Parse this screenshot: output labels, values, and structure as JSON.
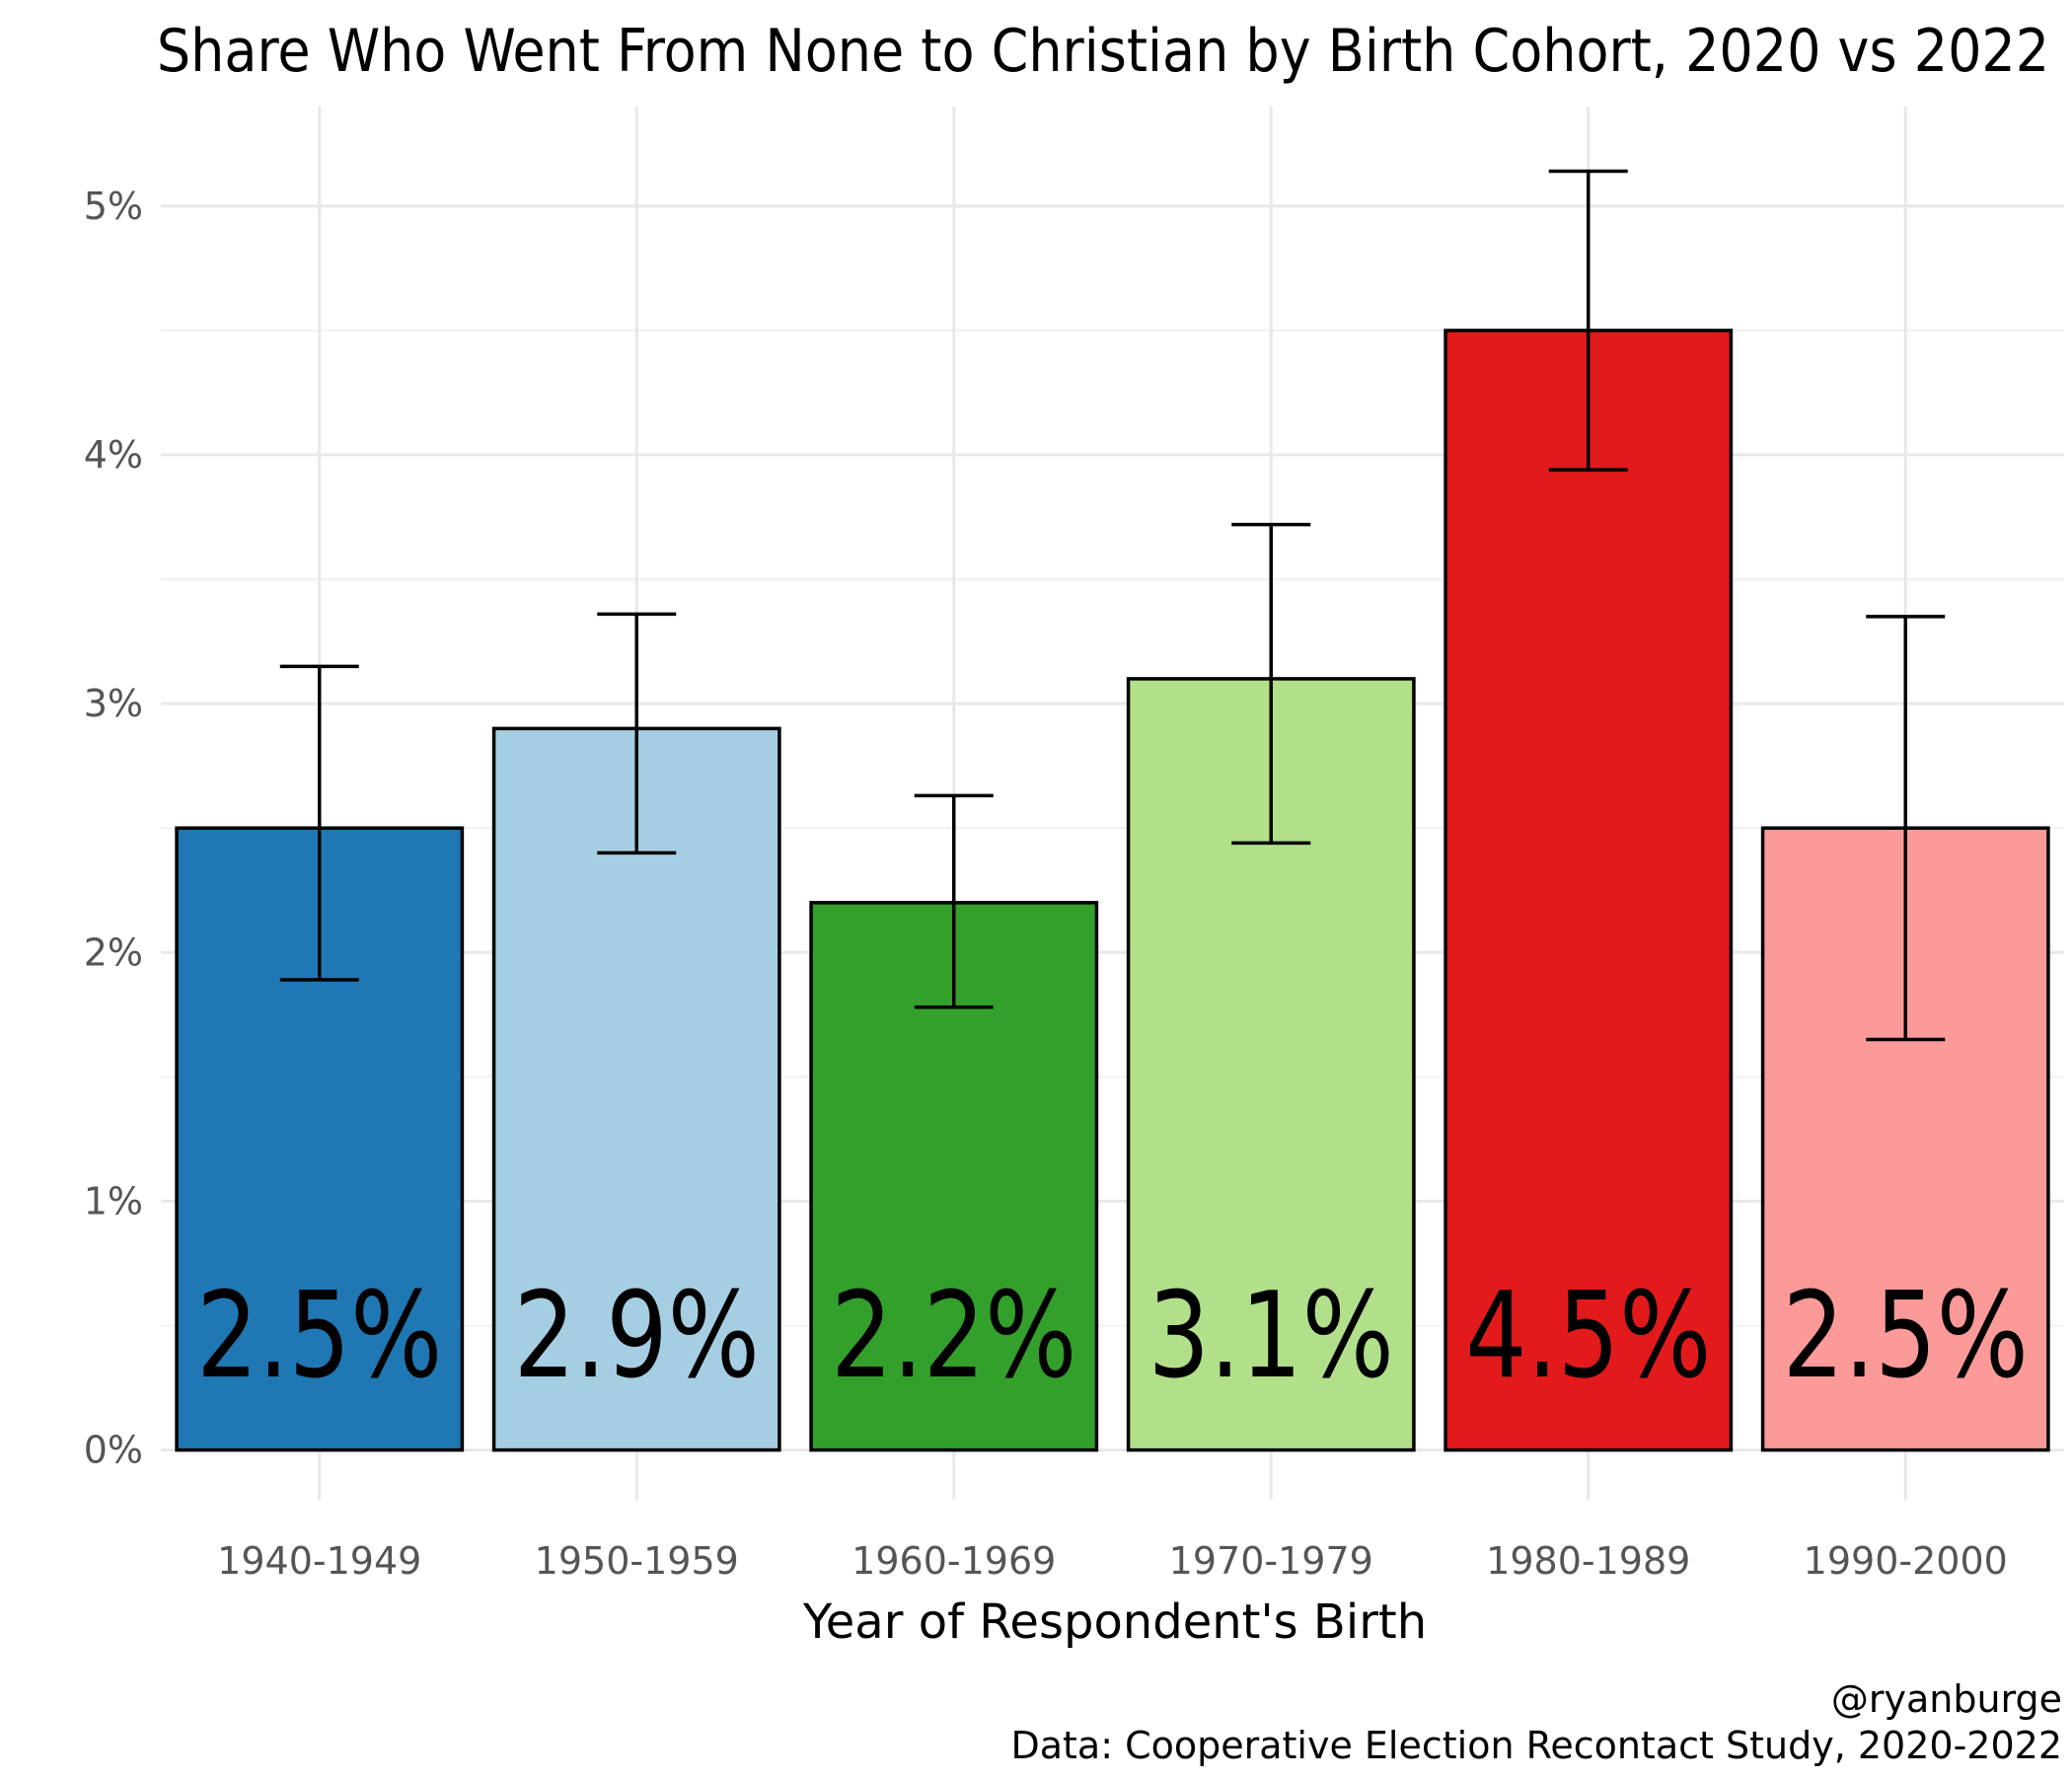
{
  "chart_data": {
    "type": "bar",
    "title": "Share Who Went From None to Christian by Birth Cohort, 2020 vs 2022",
    "xlabel": "Year of Respondent's Birth",
    "ylabel": "",
    "categories": [
      "1940-1949",
      "1950-1959",
      "1960-1969",
      "1970-1979",
      "1980-1989",
      "1990-2000"
    ],
    "values": [
      2.5,
      2.9,
      2.2,
      3.1,
      4.5,
      2.5
    ],
    "value_labels": [
      "2.5%",
      "2.9%",
      "2.2%",
      "3.1%",
      "4.5%",
      "2.5%"
    ],
    "error_low": [
      1.89,
      2.4,
      1.78,
      2.44,
      3.94,
      1.65
    ],
    "error_high": [
      3.15,
      3.36,
      2.63,
      3.72,
      5.14,
      3.35
    ],
    "colors": [
      "#1F78B4",
      "#A6CEE3",
      "#33A02C",
      "#B2DF8A",
      "#E31A1C",
      "#FB9A99"
    ],
    "ylim": [
      -0.2,
      5.4
    ],
    "yticks": [
      0,
      1,
      2,
      3,
      4,
      5
    ],
    "ytick_labels": [
      "0%",
      "1%",
      "2%",
      "3%",
      "4%",
      "5%"
    ],
    "grid": true,
    "legend": "none"
  },
  "caption": {
    "handle": "@ryanburge",
    "source": "Data: Cooperative Election Recontact Study, 2020-2022"
  }
}
